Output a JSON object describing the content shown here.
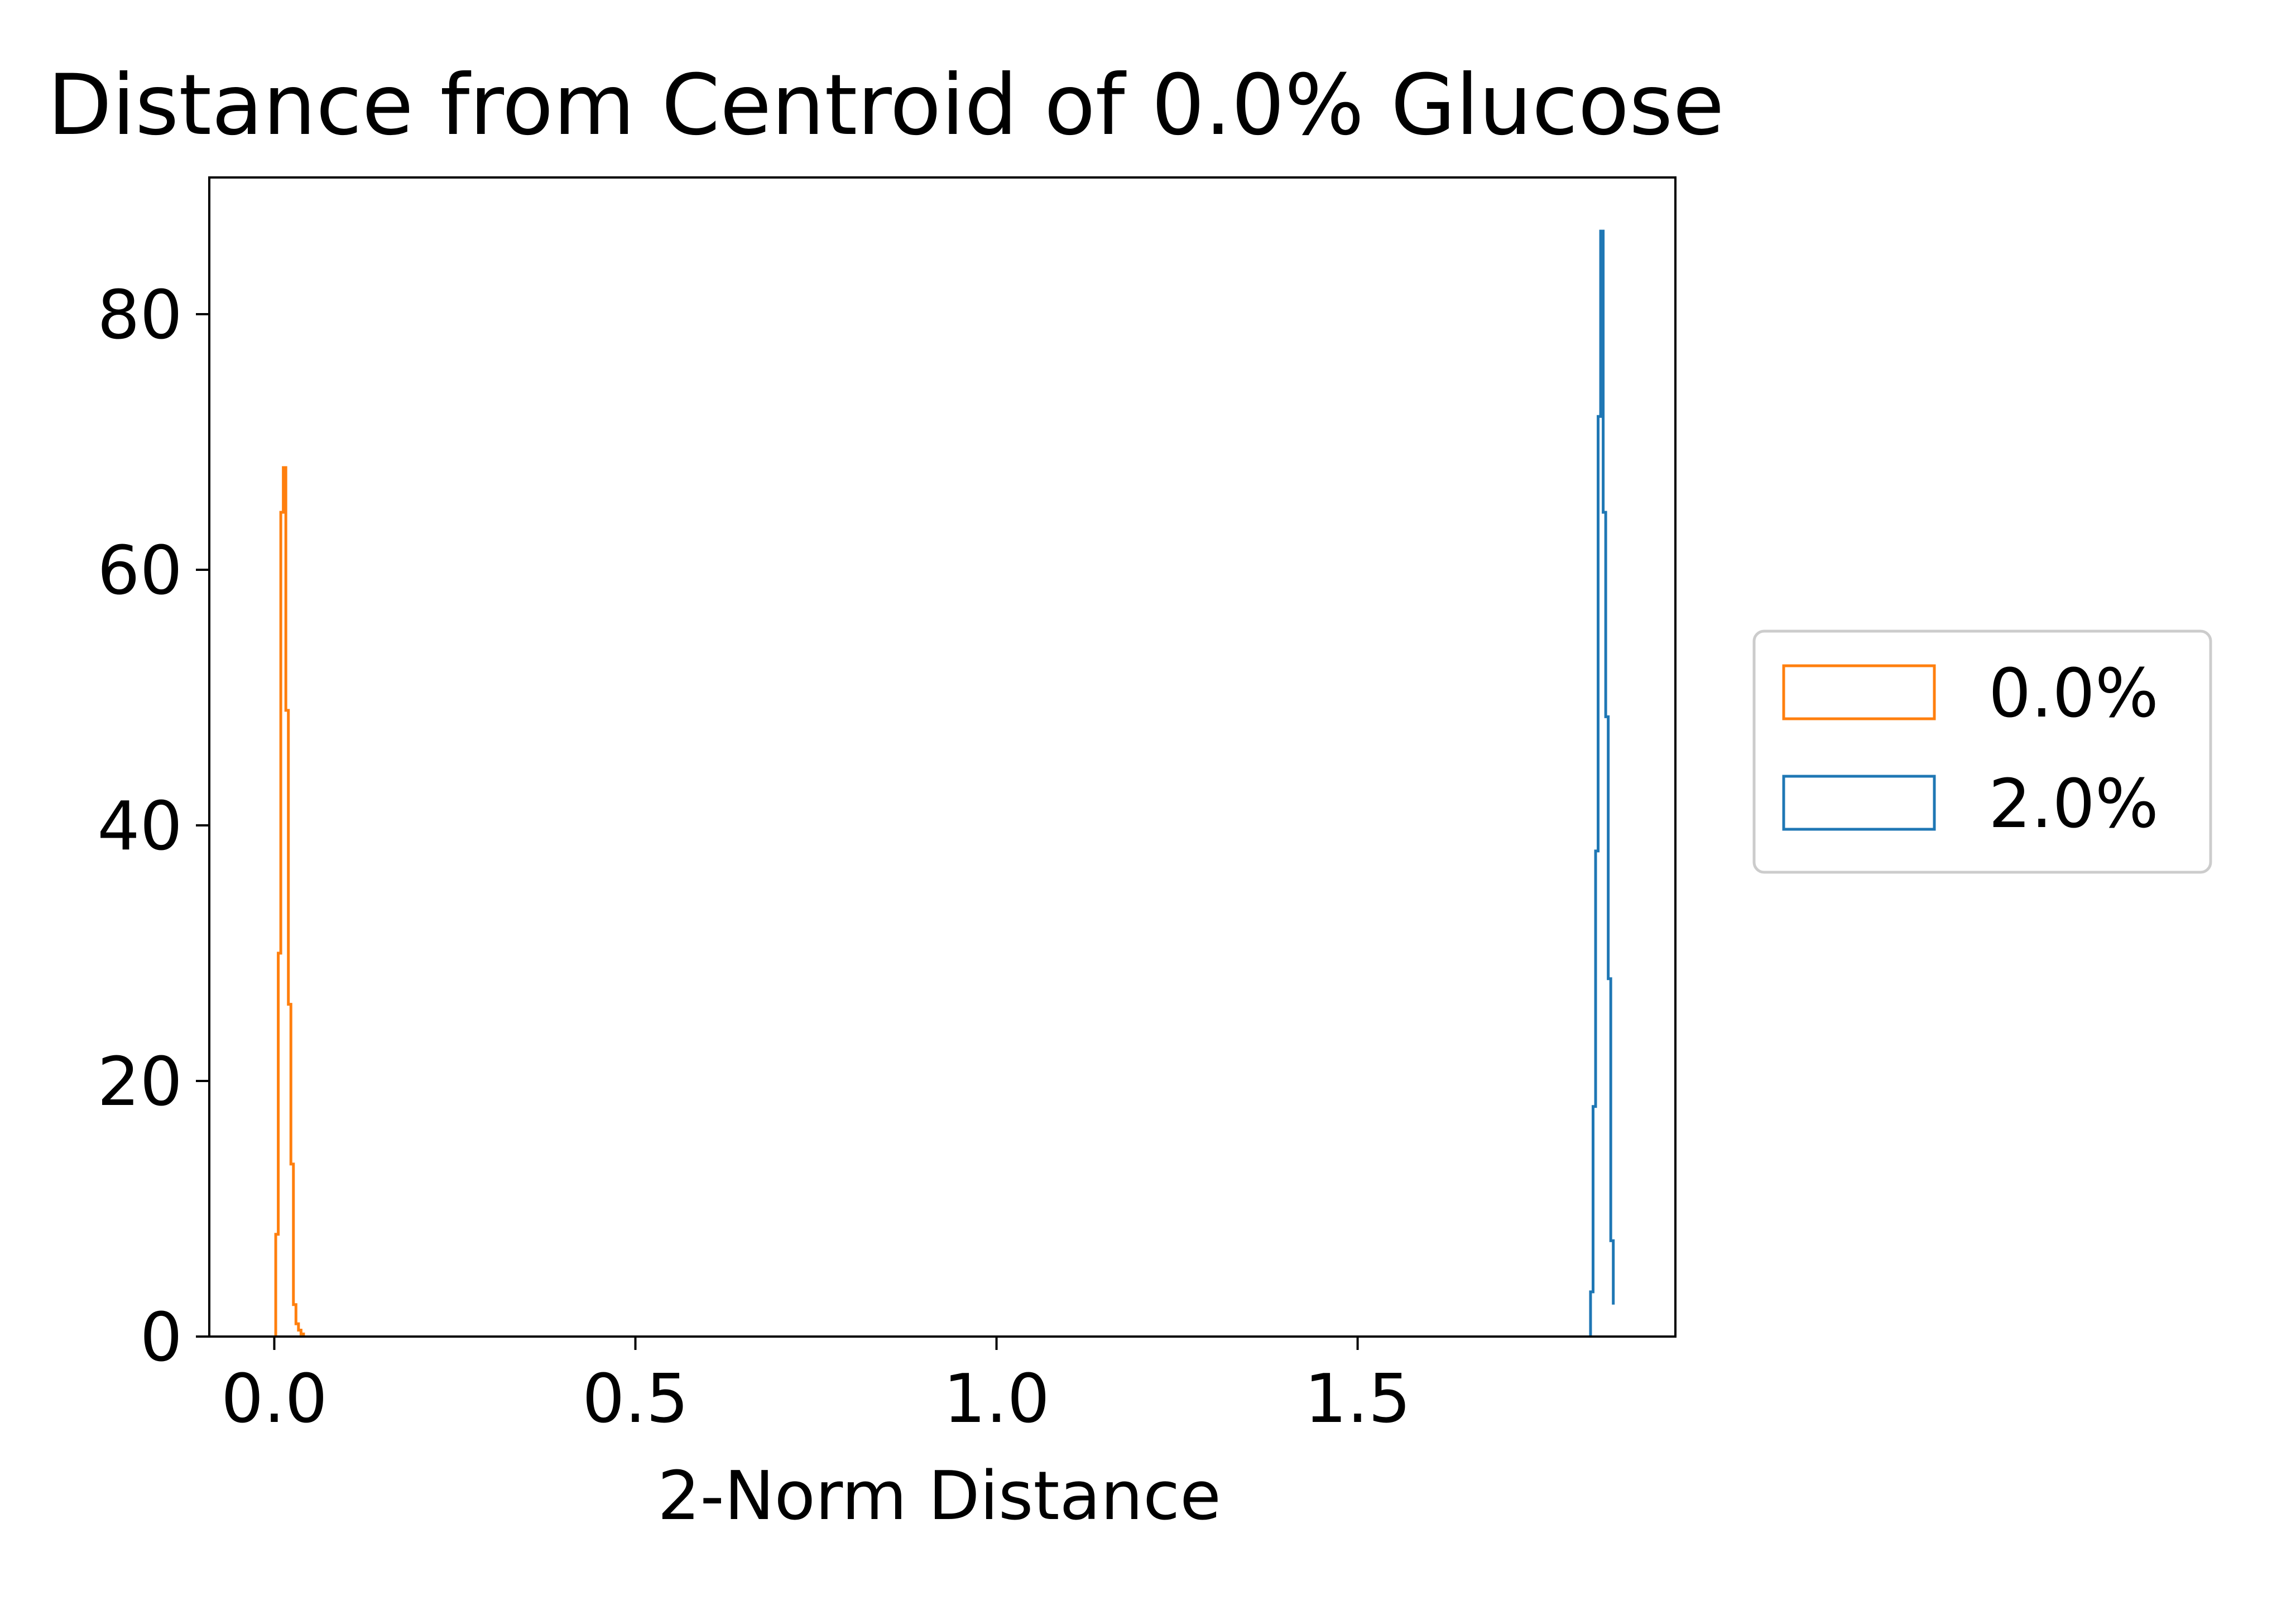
{
  "chart_data": {
    "type": "histogram",
    "title": "Distance from Centroid of 0.0% Glucose",
    "xlabel": "2-Norm Distance",
    "ylabel": "",
    "xlim": [
      -0.09,
      1.94
    ],
    "ylim": [
      0,
      90.7
    ],
    "xticks": [
      0.0,
      0.5,
      1.0,
      1.5
    ],
    "xtick_labels": [
      "0.0",
      "0.5",
      "1.0",
      "1.5"
    ],
    "yticks": [
      0,
      20,
      40,
      60,
      80
    ],
    "ytick_labels": [
      "0",
      "20",
      "40",
      "60",
      "80"
    ],
    "grid": false,
    "legend_position": "outside-right",
    "histtype": "step",
    "series": [
      {
        "name": "2.0%",
        "color": "#1f77b4",
        "bins": [
          1.8225,
          1.826,
          1.8295,
          1.833,
          1.8365,
          1.84,
          1.8435,
          1.847,
          1.8505,
          1.854
        ],
        "counts": [
          3.5,
          18,
          38,
          72,
          86.5,
          64.5,
          48.5,
          28,
          7.5,
          2.5
        ]
      },
      {
        "name": "0.0%",
        "color": "#ff7f0e",
        "bins": [
          0.002,
          0.0055,
          0.009,
          0.0125,
          0.016,
          0.0195,
          0.023,
          0.0265,
          0.03,
          0.0335,
          0.037,
          0.0405
        ],
        "counts": [
          8,
          30,
          64.5,
          68,
          49,
          26,
          13.5,
          2.5,
          1,
          0.5,
          0.2
        ]
      }
    ]
  }
}
